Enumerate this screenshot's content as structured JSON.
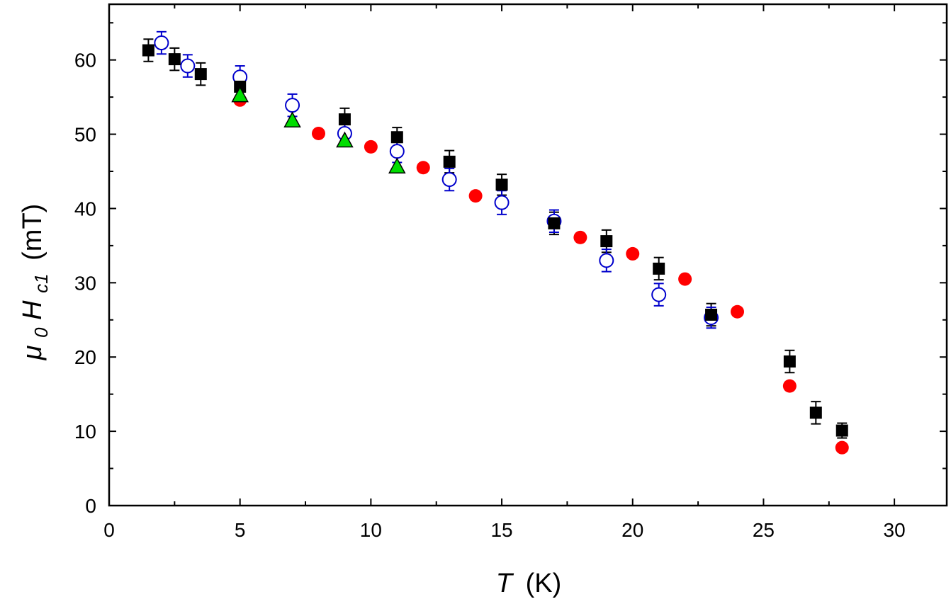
{
  "chart_data": {
    "type": "scatter",
    "title": "",
    "xlabel": {
      "symbol": "T",
      "unit": "(K)"
    },
    "ylabel": {
      "mu": "μ",
      "mu_sub": "0",
      "h": "H",
      "h_sub": "c1",
      "unit": "(mT)"
    },
    "xlim": [
      0,
      32
    ],
    "ylim": [
      0,
      67.5
    ],
    "xticks": [
      0,
      5,
      10,
      15,
      20,
      25,
      30
    ],
    "yticks": [
      0,
      10,
      20,
      30,
      40,
      50,
      60
    ],
    "grid": false,
    "legend": "none",
    "series": [
      {
        "name": "black filled squares",
        "marker": "square-filled",
        "color": "#000000",
        "points": [
          {
            "x": 1.5,
            "y": 61.3,
            "err": 1.5
          },
          {
            "x": 2.5,
            "y": 60.1,
            "err": 1.5
          },
          {
            "x": 3.5,
            "y": 58.1,
            "err": 1.5
          },
          {
            "x": 5,
            "y": 56.4,
            "err": 1.5
          },
          {
            "x": 9,
            "y": 52.0,
            "err": 1.5
          },
          {
            "x": 11,
            "y": 49.6,
            "err": 1.3
          },
          {
            "x": 13,
            "y": 46.3,
            "err": 1.5
          },
          {
            "x": 15,
            "y": 43.2,
            "err": 1.4
          },
          {
            "x": 17,
            "y": 38.0,
            "err": 1.5
          },
          {
            "x": 19,
            "y": 35.6,
            "err": 1.5
          },
          {
            "x": 21,
            "y": 31.9,
            "err": 1.5
          },
          {
            "x": 23,
            "y": 25.7,
            "err": 1.5
          },
          {
            "x": 26,
            "y": 19.4,
            "err": 1.5
          },
          {
            "x": 27,
            "y": 12.5,
            "err": 1.5
          },
          {
            "x": 28,
            "y": 10.1,
            "err": 1.0
          }
        ]
      },
      {
        "name": "blue open circles",
        "marker": "circle-open",
        "color": "#0000cc",
        "points": [
          {
            "x": 2,
            "y": 62.3,
            "err": 1.5
          },
          {
            "x": 3,
            "y": 59.2,
            "err": 1.5
          },
          {
            "x": 5,
            "y": 57.7,
            "err": 1.5
          },
          {
            "x": 7,
            "y": 53.9,
            "err": 1.5
          },
          {
            "x": 9,
            "y": 50.1,
            "err": 1.5
          },
          {
            "x": 11,
            "y": 47.7,
            "err": 1.5
          },
          {
            "x": 13,
            "y": 43.9,
            "err": 1.5
          },
          {
            "x": 15,
            "y": 40.8,
            "err": 1.6
          },
          {
            "x": 17,
            "y": 38.3,
            "err": 1.5
          },
          {
            "x": 19,
            "y": 33.0,
            "err": 1.5
          },
          {
            "x": 21,
            "y": 28.4,
            "err": 1.5
          },
          {
            "x": 23,
            "y": 25.3,
            "err": 1.4
          }
        ]
      },
      {
        "name": "red filled circles",
        "marker": "circle-filled",
        "color": "#ff0000",
        "points": [
          {
            "x": 5,
            "y": 54.6
          },
          {
            "x": 8,
            "y": 50.1
          },
          {
            "x": 10,
            "y": 48.3
          },
          {
            "x": 12,
            "y": 45.5
          },
          {
            "x": 14,
            "y": 41.7
          },
          {
            "x": 18,
            "y": 36.1
          },
          {
            "x": 20,
            "y": 33.9
          },
          {
            "x": 22,
            "y": 30.5
          },
          {
            "x": 24,
            "y": 26.1
          },
          {
            "x": 26,
            "y": 16.1
          },
          {
            "x": 28,
            "y": 7.8
          }
        ]
      },
      {
        "name": "green triangles",
        "marker": "triangle-filled",
        "color": "#00dd00",
        "points": [
          {
            "x": 5,
            "y": 55.2
          },
          {
            "x": 7,
            "y": 51.8
          },
          {
            "x": 9,
            "y": 49.1
          },
          {
            "x": 11,
            "y": 45.6
          }
        ]
      }
    ]
  }
}
